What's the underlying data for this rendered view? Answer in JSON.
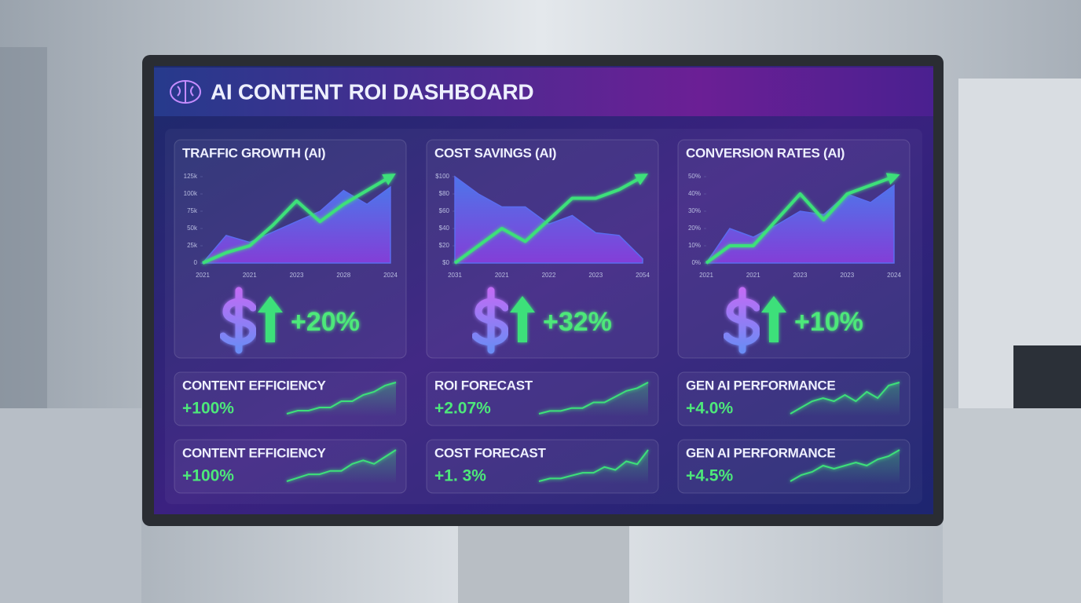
{
  "header": {
    "title": "AI CONTENT ROI DASHBOARD"
  },
  "chart_data": [
    {
      "type": "area",
      "title": "TRAFFIC GROWTH (AI)",
      "categories": [
        "2021",
        null,
        "2021",
        null,
        "2023",
        null,
        "2028",
        null,
        "2024"
      ],
      "series": [
        {
          "color": "#5a6cf0",
          "fill": true,
          "values": [
            0,
            40000,
            30000,
            45000,
            60000,
            75000,
            105000,
            85000,
            110000
          ]
        },
        {
          "color": "#3ee07a",
          "values": [
            0,
            15000,
            25000,
            55000,
            90000,
            60000,
            85000,
            105000,
            125000
          ]
        }
      ],
      "ylim": [
        0,
        125000
      ],
      "yticks": [
        0,
        {
          "value": 25000,
          "label": "25k"
        },
        {
          "value": 50000,
          "label": "50k"
        },
        {
          "value": 75000,
          "label": "75k"
        },
        {
          "value": 100000,
          "label": "100k"
        },
        {
          "value": 125000,
          "label": "125k"
        }
      ],
      "delta": "+20%"
    },
    {
      "type": "area",
      "title": "COST SAVINGS (AI)",
      "categories": [
        "2031",
        null,
        "2021",
        null,
        "2022",
        null,
        "2023",
        null,
        "2054"
      ],
      "series": [
        {
          "color": "#5a6cf0",
          "fill": true,
          "values": [
            100,
            80,
            65,
            65,
            45,
            55,
            35,
            32,
            5
          ]
        },
        {
          "color": "#3ee07a",
          "values": [
            0,
            20,
            40,
            25,
            50,
            75,
            75,
            85,
            100
          ]
        }
      ],
      "ylim": [
        0,
        100
      ],
      "yticks": [
        {
          "value": 0,
          "label": "$0"
        },
        {
          "value": 20,
          "label": "$20"
        },
        {
          "value": 40,
          "label": "$40"
        },
        {
          "value": 60,
          "label": "$60"
        },
        {
          "value": 80,
          "label": "$80"
        },
        {
          "value": 100,
          "label": "$100"
        }
      ],
      "delta": "+32%"
    },
    {
      "type": "area",
      "title": "CONVERSION RATES (AI)",
      "categories": [
        "2021",
        null,
        "2021",
        null,
        "2023",
        null,
        "2023",
        null,
        "2024"
      ],
      "series": [
        {
          "color": "#5a6cf0",
          "fill": true,
          "values": [
            0,
            20,
            15,
            22,
            30,
            28,
            40,
            35,
            45
          ]
        },
        {
          "color": "#3ee07a",
          "values": [
            0,
            10,
            10,
            25,
            40,
            25,
            40,
            45,
            50
          ]
        }
      ],
      "ylim": [
        0,
        50
      ],
      "yticks": [
        {
          "value": 0,
          "label": "0%"
        },
        {
          "value": 10,
          "label": "10%"
        },
        {
          "value": 20,
          "label": "20%"
        },
        {
          "value": 30,
          "label": "30%"
        },
        {
          "value": 40,
          "label": "40%"
        },
        {
          "value": 50,
          "label": "50%"
        }
      ],
      "delta": "+10%"
    }
  ],
  "cards": [
    {
      "label": "CONTENT EFFICIENCY",
      "value": "+100%",
      "trend": [
        2,
        3,
        3,
        4,
        4,
        6,
        6,
        8,
        9,
        11,
        12
      ]
    },
    {
      "label": "ROI FORECAST",
      "value": "+2.07%",
      "trend": [
        1,
        2,
        2,
        3,
        3,
        5,
        5,
        7,
        9,
        10,
        12
      ]
    },
    {
      "label": "GEN AI PERFORMANCE",
      "value": "+4.0%",
      "trend": [
        1,
        3,
        5,
        6,
        5,
        7,
        5,
        8,
        6,
        10,
        11
      ]
    },
    {
      "label": "CONTENT EFFICIENCY",
      "value": "+100%",
      "trend": [
        2,
        3,
        4,
        4,
        5,
        5,
        7,
        8,
        7,
        9,
        11
      ]
    },
    {
      "label": "COST FORECAST",
      "value": "+1. 3%",
      "trend": [
        1,
        2,
        2,
        3,
        4,
        4,
        6,
        5,
        8,
        7,
        12
      ]
    },
    {
      "label": "GEN AI PERFORMANCE",
      "value": "+4.5%",
      "trend": [
        1,
        3,
        4,
        6,
        5,
        6,
        7,
        6,
        8,
        9,
        11
      ]
    }
  ]
}
